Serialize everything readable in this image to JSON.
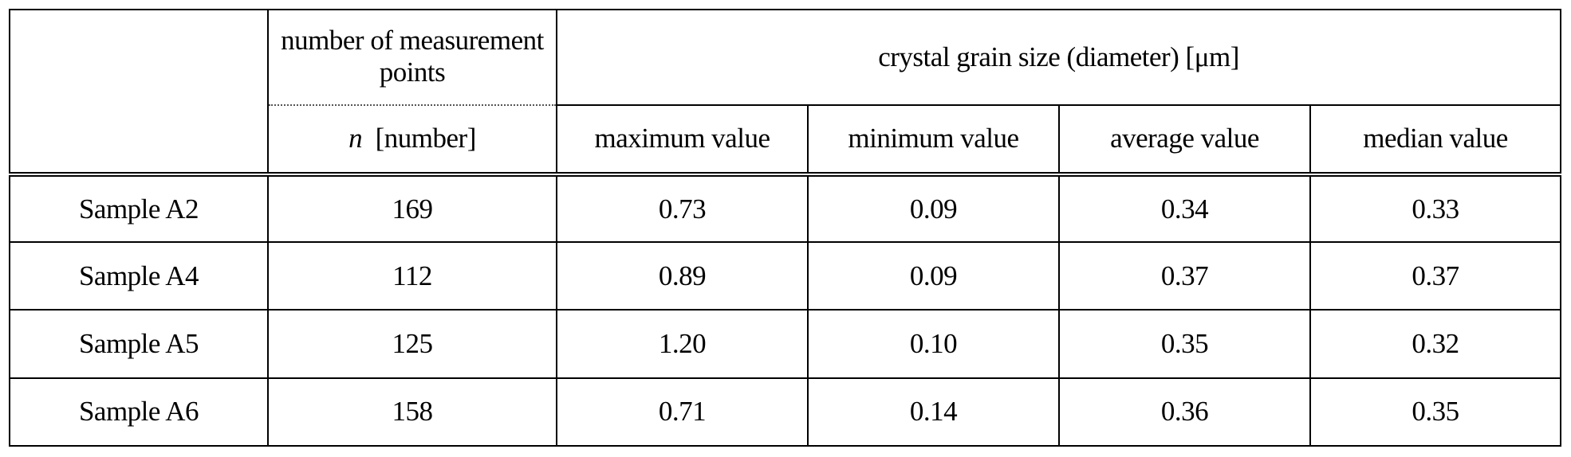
{
  "header": {
    "count_group_label": "number of measurement points",
    "count_unit_var": "n",
    "count_unit": "[number]",
    "grain_group_label": "crystal grain size (diameter) [μm]",
    "columns": [
      "maximum value",
      "minimum value",
      "average value",
      "median value"
    ]
  },
  "rows": [
    {
      "sample": "Sample A2",
      "n": "169",
      "max": "0.73",
      "min": "0.09",
      "avg": "0.34",
      "median": "0.33"
    },
    {
      "sample": "Sample A4",
      "n": "112",
      "max": "0.89",
      "min": "0.09",
      "avg": "0.37",
      "median": "0.37"
    },
    {
      "sample": "Sample A5",
      "n": "125",
      "max": "1.20",
      "min": "0.10",
      "avg": "0.35",
      "median": "0.32"
    },
    {
      "sample": "Sample A6",
      "n": "158",
      "max": "0.71",
      "min": "0.14",
      "avg": "0.36",
      "median": "0.35"
    }
  ]
}
